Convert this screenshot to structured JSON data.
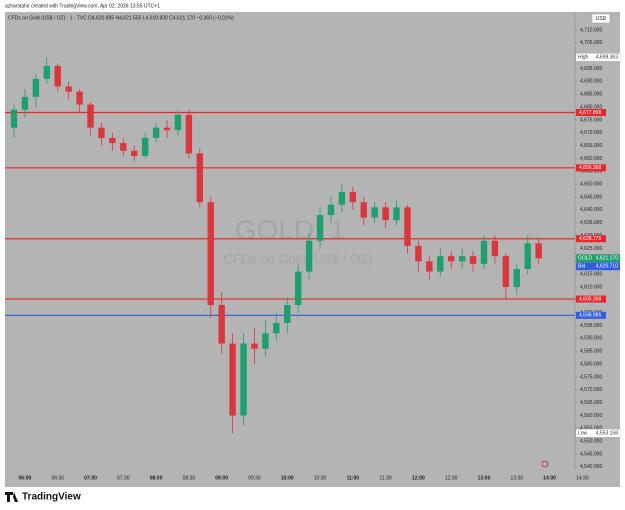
{
  "header": {
    "attribution": "azharstahir created with TradingView.com, Apr 02, 2026 13:55 UTC+1"
  },
  "footer": {
    "logo": "TradingView"
  },
  "chart_data": {
    "type": "candlestick",
    "title": "CFDs on Gold (US$ / OZ) · 1 · TVC",
    "ohlc_text": "O4,620.885 H4,621.555 L4,619.830 C4,621.170 −0.360 (−0.01%)",
    "watermark": "GOLD, 1",
    "watermark_subtitle": "CFDs on Gold (US$ / OZ)",
    "currency": "USD",
    "up_color": "#1f9e6e",
    "down_color": "#d9363e",
    "categories": [
      null,
      "06:00",
      null,
      null,
      "06:30",
      null,
      null,
      "07:00",
      null,
      null,
      "07:30",
      null,
      null,
      "08:00",
      null,
      null,
      "08:30",
      null,
      null,
      "09:00",
      null,
      null,
      "09:30",
      null,
      null,
      "10:00",
      null,
      null,
      "10:30",
      null,
      null,
      "11:00",
      null,
      null,
      "11:30",
      null,
      null,
      "12:00",
      null,
      null,
      "12:30",
      null,
      null,
      "13:00",
      null,
      null,
      "13:30",
      null,
      null,
      "14:00",
      null,
      null,
      "14:30"
    ],
    "open": [
      4672,
      4679,
      4684,
      4691,
      4696,
      4688,
      4686,
      4681,
      4672,
      4668,
      4666,
      4663,
      4661,
      4668,
      4672,
      4671,
      4677,
      4662,
      4643,
      4603,
      4588,
      4560,
      4588,
      4586,
      4592,
      4596,
      4603,
      4616,
      4628,
      4638,
      4642,
      4647,
      4643,
      4637,
      4641,
      4636,
      4641,
      4626,
      4620,
      4616,
      4622,
      4620,
      4622,
      4619,
      4628,
      4622,
      4610,
      4617,
      4627,
      null,
      null,
      null,
      null
    ],
    "high": [
      4681,
      4687,
      4693,
      4699.363,
      4697,
      4690,
      4687,
      4682,
      4674,
      4670,
      4668,
      4665,
      4670,
      4674,
      4675,
      4679,
      4679,
      4664,
      4645,
      4608,
      4592,
      4592,
      4594,
      4597,
      4600,
      4606,
      4619,
      4631,
      4641,
      4645,
      4650,
      4649,
      4645,
      4643,
      4643,
      4644,
      4642,
      4628,
      4622,
      4625,
      4624,
      4625,
      4624,
      4630,
      4630,
      4623,
      4619,
      4630,
      4629,
      null,
      null,
      null,
      null
    ],
    "low": [
      4668,
      4676,
      4680,
      4689,
      4686,
      4683,
      4678,
      4669,
      4665,
      4663,
      4661,
      4659,
      4660,
      4666,
      4668,
      4669,
      4660,
      4641,
      4598,
      4584,
      4553.158,
      4556,
      4580,
      4583,
      4589,
      4592,
      4600,
      4613,
      4625,
      4635,
      4639,
      4640,
      4634,
      4635,
      4633,
      4634,
      4623,
      4616,
      4613,
      4614,
      4617,
      4617,
      4616,
      4617,
      4619,
      4605,
      4607,
      4615,
      4619,
      null,
      null,
      null,
      null
    ],
    "close": [
      4679,
      4684,
      4691,
      4696,
      4688,
      4686,
      4681,
      4672,
      4668,
      4666,
      4663,
      4661,
      4668,
      4672,
      4671,
      4677,
      4662,
      4643,
      4603,
      4588,
      4560,
      4588,
      4586,
      4592,
      4596,
      4603,
      4616,
      4628,
      4638,
      4642,
      4647,
      4643,
      4637,
      4641,
      4636,
      4641,
      4626,
      4620,
      4616,
      4622,
      4620,
      4622,
      4619,
      4628,
      4622,
      4610,
      4617,
      4627,
      4621.17,
      null,
      null,
      null,
      null
    ],
    "levels": [
      {
        "value": 4677.898,
        "label": "4,677.898",
        "color": "#e8262d"
      },
      {
        "value": 4656.368,
        "label": "4,656.368",
        "color": "#e8262d"
      },
      {
        "value": 4628.775,
        "label": "4,628.775",
        "color": "#e8262d"
      },
      {
        "value": 4605.308,
        "label": "4,605.308",
        "color": "#e8262d"
      },
      {
        "value": 4598.985,
        "label": "4,598.985",
        "color": "#2f5fe0"
      }
    ],
    "badges": [
      {
        "name": "High",
        "value": 4699.363,
        "label": "4,699.363",
        "color": "#ffffff",
        "text_color": "#333333"
      },
      {
        "name": "GOLD",
        "value": 4621.17,
        "label": "4,621.170",
        "color": "#1f9e6e",
        "text_color": "#ffffff"
      },
      {
        "name": "Bid",
        "value": 4620.71,
        "label": "4,620.710",
        "color": "#2f5fe0",
        "text_color": "#ffffff"
      },
      {
        "name": "Low",
        "value": 4553.158,
        "label": "4,553.158",
        "color": "#ffffff",
        "text_color": "#333333"
      }
    ],
    "ylim": [
      4538.8,
      4717.0
    ],
    "yticks": [
      {
        "value": 4540,
        "label": "4,540.000"
      },
      {
        "value": 4545,
        "label": "4,545.000"
      },
      {
        "value": 4550,
        "label": "4,550.000"
      },
      {
        "value": 4555,
        "label": "4,555.000"
      },
      {
        "value": 4560,
        "label": "4,560.000"
      },
      {
        "value": 4565,
        "label": "4,565.000"
      },
      {
        "value": 4570,
        "label": "4,570.000"
      },
      {
        "value": 4575,
        "label": "4,575.000"
      },
      {
        "value": 4580,
        "label": "4,580.000"
      },
      {
        "value": 4585,
        "label": "4,585.000"
      },
      {
        "value": 4590,
        "label": "4,590.000"
      },
      {
        "value": 4595,
        "label": "4,595.000"
      },
      {
        "value": 4600,
        "label": "4,600.000"
      },
      {
        "value": 4605,
        "label": "4,605.000"
      },
      {
        "value": 4610,
        "label": "4,610.000"
      },
      {
        "value": 4615,
        "label": "4,615.000"
      },
      {
        "value": 4620,
        "label": "4,620.000"
      },
      {
        "value": 4625,
        "label": "4,625.000"
      },
      {
        "value": 4630,
        "label": "4,630.000"
      },
      {
        "value": 4635,
        "label": "4,635.000"
      },
      {
        "value": 4640,
        "label": "4,640.000"
      },
      {
        "value": 4645,
        "label": "4,645.000"
      },
      {
        "value": 4650,
        "label": "4,650.000"
      },
      {
        "value": 4655,
        "label": "4,655.000"
      },
      {
        "value": 4660,
        "label": "4,660.000"
      },
      {
        "value": 4665,
        "label": "4,665.000"
      },
      {
        "value": 4670,
        "label": "4,670.000"
      },
      {
        "value": 4675,
        "label": "4,675.000"
      },
      {
        "value": 4680,
        "label": "4,680.000"
      },
      {
        "value": 4685,
        "label": "4,685.000"
      },
      {
        "value": 4690,
        "label": "4,690.000"
      },
      {
        "value": 4695,
        "label": "4,695.000"
      },
      {
        "value": 4700,
        "label": "4,700.000"
      },
      {
        "value": 4705,
        "label": "4,705.000"
      },
      {
        "value": 4710,
        "label": "4,710.000"
      }
    ]
  }
}
